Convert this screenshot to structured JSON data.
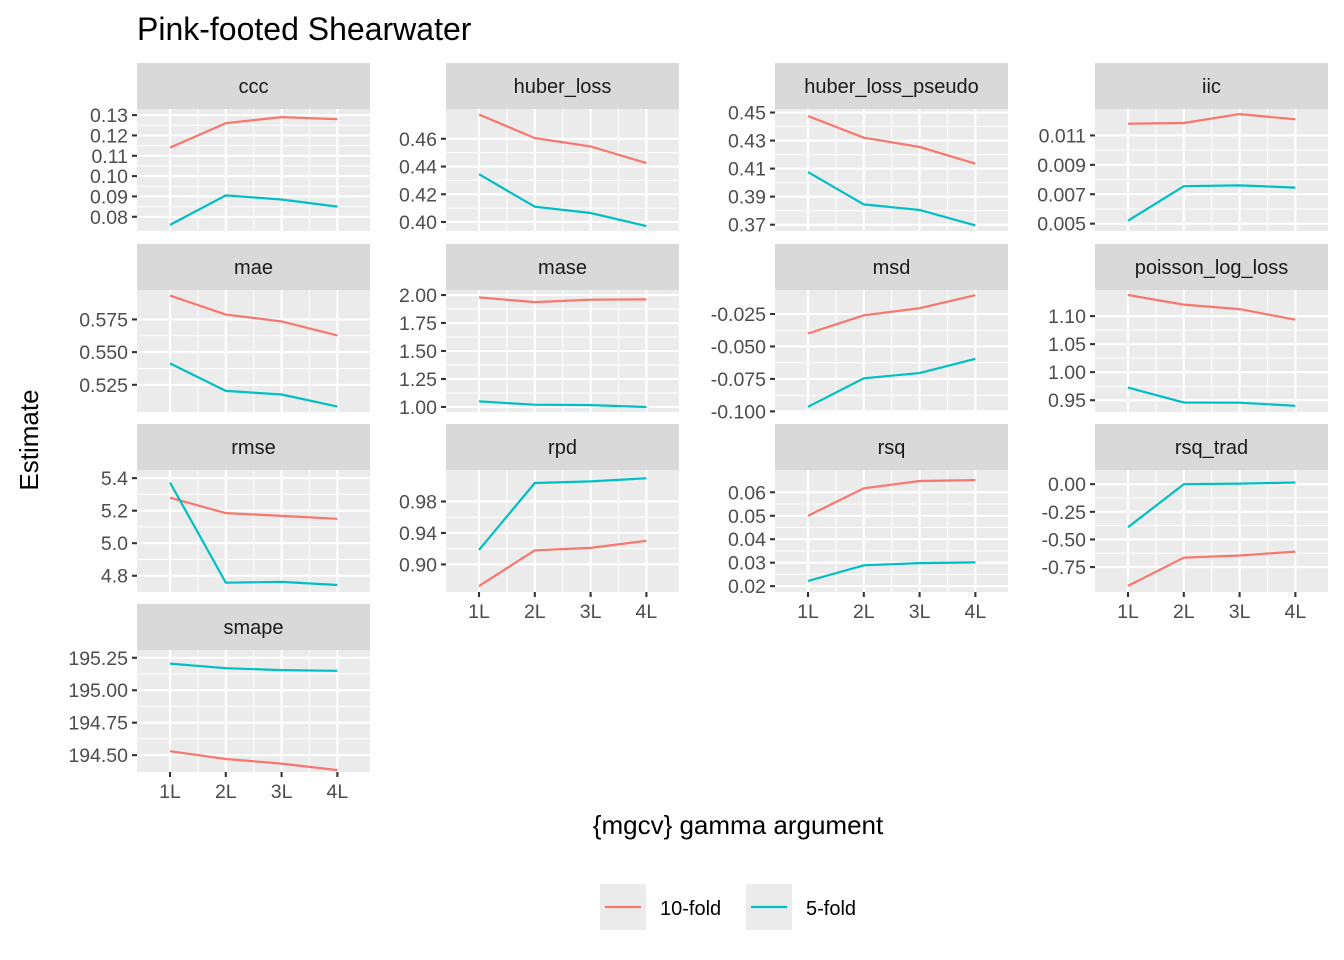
{
  "chart_data": {
    "type": "line",
    "title": "Pink-footed Shearwater",
    "xlabel": "{mgcv} gamma argument",
    "ylabel": "Estimate",
    "x_categories": [
      "1L",
      "2L",
      "3L",
      "4L"
    ],
    "legend_position": "bottom",
    "grid": true,
    "series": [
      {
        "name": "10-fold",
        "color": "#f8766d"
      },
      {
        "name": "5-fold",
        "color": "#00bfc4"
      }
    ],
    "panels": [
      {
        "name": "ccc",
        "ylim": [
          0.073,
          0.133
        ],
        "yticks": [
          {
            "v": 0.08,
            "label": "0.08"
          },
          {
            "v": 0.09,
            "label": "0.09"
          },
          {
            "v": 0.1,
            "label": "0.10"
          },
          {
            "v": 0.11,
            "label": "0.11"
          },
          {
            "v": 0.12,
            "label": "0.12"
          },
          {
            "v": 0.13,
            "label": "0.13"
          }
        ],
        "values": {
          "10-fold": [
            0.114,
            0.126,
            0.129,
            0.128
          ],
          "5-fold": [
            0.076,
            0.0905,
            0.0885,
            0.085
          ]
        }
      },
      {
        "name": "huber_loss",
        "ylim": [
          0.3935,
          0.4815
        ],
        "yticks": [
          {
            "v": 0.4,
            "label": "0.40"
          },
          {
            "v": 0.42,
            "label": "0.42"
          },
          {
            "v": 0.44,
            "label": "0.44"
          },
          {
            "v": 0.46,
            "label": "0.46"
          }
        ],
        "values": {
          "10-fold": [
            0.4775,
            0.4605,
            0.4545,
            0.4425
          ],
          "5-fold": [
            0.4345,
            0.411,
            0.4065,
            0.397
          ]
        }
      },
      {
        "name": "huber_loss_pseudo",
        "ylim": [
          0.3655,
          0.4525
        ],
        "yticks": [
          {
            "v": 0.37,
            "label": "0.37"
          },
          {
            "v": 0.39,
            "label": "0.39"
          },
          {
            "v": 0.41,
            "label": "0.41"
          },
          {
            "v": 0.43,
            "label": "0.43"
          },
          {
            "v": 0.45,
            "label": "0.45"
          }
        ],
        "values": {
          "10-fold": [
            0.4475,
            0.432,
            0.4255,
            0.4135
          ],
          "5-fold": [
            0.4075,
            0.3845,
            0.3805,
            0.3695
          ]
        }
      },
      {
        "name": "iic",
        "ylim": [
          0.0045,
          0.0128
        ],
        "yticks": [
          {
            "v": 0.005,
            "label": "0.005"
          },
          {
            "v": 0.007,
            "label": "0.007"
          },
          {
            "v": 0.009,
            "label": "0.009"
          },
          {
            "v": 0.011,
            "label": "0.011"
          }
        ],
        "values": {
          "10-fold": [
            0.0118,
            0.01185,
            0.01245,
            0.0121
          ],
          "5-fold": [
            0.0052,
            0.00755,
            0.0076,
            0.00745
          ]
        }
      },
      {
        "name": "mae",
        "ylim": [
          0.5042,
          0.5975
        ],
        "yticks": [
          {
            "v": 0.525,
            "label": "0.525"
          },
          {
            "v": 0.55,
            "label": "0.550"
          },
          {
            "v": 0.575,
            "label": "0.575"
          }
        ],
        "values": {
          "10-fold": [
            0.5932,
            0.5787,
            0.5735,
            0.5628
          ],
          "5-fold": [
            0.5414,
            0.5203,
            0.5176,
            0.5083
          ]
        }
      },
      {
        "name": "mase",
        "ylim": [
          0.955,
          2.045
        ],
        "yticks": [
          {
            "v": 1.0,
            "label": "1.00"
          },
          {
            "v": 1.25,
            "label": "1.25"
          },
          {
            "v": 1.5,
            "label": "1.50"
          },
          {
            "v": 1.75,
            "label": "1.75"
          },
          {
            "v": 2.0,
            "label": "2.00"
          }
        ],
        "values": {
          "10-fold": [
            1.979,
            1.937,
            1.958,
            1.961
          ],
          "5-fold": [
            1.05,
            1.02,
            1.017,
            1.0
          ]
        }
      },
      {
        "name": "msd",
        "ylim": [
          -0.1005,
          -0.0065
        ],
        "yticks": [
          {
            "v": -0.1,
            "label": "-0.100"
          },
          {
            "v": -0.075,
            "label": "-0.075"
          },
          {
            "v": -0.05,
            "label": "-0.050"
          },
          {
            "v": -0.025,
            "label": "-0.025"
          }
        ],
        "values": {
          "10-fold": [
            -0.04,
            -0.026,
            -0.0205,
            -0.0105
          ],
          "5-fold": [
            -0.0965,
            -0.0745,
            -0.0705,
            -0.0595
          ]
        }
      },
      {
        "name": "poisson_log_loss",
        "ylim": [
          0.929,
          1.1465
        ],
        "yticks": [
          {
            "v": 0.95,
            "label": "0.95"
          },
          {
            "v": 1.0,
            "label": "1.00"
          },
          {
            "v": 1.05,
            "label": "1.05"
          },
          {
            "v": 1.1,
            "label": "1.10"
          }
        ],
        "values": {
          "10-fold": [
            1.1375,
            1.1205,
            1.1125,
            1.0935
          ],
          "5-fold": [
            0.9725,
            0.946,
            0.9455,
            0.94
          ]
        }
      },
      {
        "name": "rmse",
        "ylim": [
          4.7,
          5.45
        ],
        "yticks": [
          {
            "v": 4.8,
            "label": "4.8"
          },
          {
            "v": 5.0,
            "label": "5.0"
          },
          {
            "v": 5.2,
            "label": "5.2"
          },
          {
            "v": 5.4,
            "label": "5.4"
          }
        ],
        "values": {
          "10-fold": [
            5.28,
            5.185,
            5.168,
            5.15
          ],
          "5-fold": [
            5.373,
            4.757,
            4.762,
            4.743
          ]
        }
      },
      {
        "name": "rpd",
        "ylim": [
          0.865,
          1.02
        ],
        "yticks": [
          {
            "v": 0.9,
            "label": "0.90"
          },
          {
            "v": 0.94,
            "label": "0.94"
          },
          {
            "v": 0.98,
            "label": "0.98"
          }
        ],
        "values": {
          "10-fold": [
            0.8725,
            0.918,
            0.921,
            0.93
          ],
          "5-fold": [
            0.9185,
            1.0035,
            1.0055,
            1.0095
          ]
        }
      },
      {
        "name": "rsq",
        "ylim": [
          0.0175,
          0.0695
        ],
        "yticks": [
          {
            "v": 0.02,
            "label": "0.02"
          },
          {
            "v": 0.03,
            "label": "0.03"
          },
          {
            "v": 0.04,
            "label": "0.04"
          },
          {
            "v": 0.05,
            "label": "0.05"
          },
          {
            "v": 0.06,
            "label": "0.06"
          }
        ],
        "values": {
          "10-fold": [
            0.05,
            0.0617,
            0.0648,
            0.0652
          ],
          "5-fold": [
            0.0222,
            0.0289,
            0.0298,
            0.0301
          ]
        }
      },
      {
        "name": "rsq_trad",
        "ylim": [
          -0.975,
          0.128
        ],
        "yticks": [
          {
            "v": -0.75,
            "label": "-0.75"
          },
          {
            "v": -0.5,
            "label": "-0.50"
          },
          {
            "v": -0.25,
            "label": "-0.25"
          },
          {
            "v": 0.0,
            "label": "0.00"
          }
        ],
        "values": {
          "10-fold": [
            -0.92,
            -0.665,
            -0.645,
            -0.61
          ],
          "5-fold": [
            -0.39,
            0.0,
            0.005,
            0.015
          ]
        }
      },
      {
        "name": "smape",
        "ylim": [
          194.37,
          195.31
        ],
        "yticks": [
          {
            "v": 194.5,
            "label": "194.50"
          },
          {
            "v": 194.75,
            "label": "194.75"
          },
          {
            "v": 195.0,
            "label": "195.00"
          },
          {
            "v": 195.25,
            "label": "195.25"
          }
        ],
        "values": {
          "10-fold": [
            194.53,
            194.47,
            194.435,
            194.385
          ],
          "5-fold": [
            195.205,
            195.17,
            195.155,
            195.15
          ]
        }
      }
    ]
  }
}
